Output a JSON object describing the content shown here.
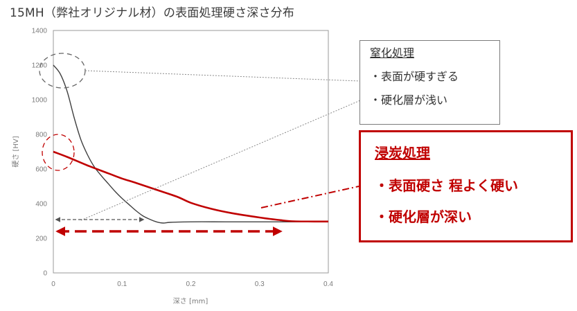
{
  "title": "15MH（弊社オリジナル材）の表面処理硬さ深さ分布",
  "chart_data": {
    "type": "line",
    "xlabel": "深さ [mm]",
    "ylabel": "硬さ [HV]",
    "xlim": [
      0,
      0.4
    ],
    "ylim": [
      0,
      1400
    ],
    "xticks": [
      "0",
      "0.1",
      "0.2",
      "0.3",
      "0.4"
    ],
    "yticks": [
      "0",
      "200",
      "400",
      "600",
      "800",
      "1000",
      "1200",
      "1400"
    ],
    "grid": false,
    "series": [
      {
        "name": "窒化処理",
        "color": "#404040",
        "x": [
          0,
          0.01,
          0.02,
          0.03,
          0.04,
          0.05,
          0.06,
          0.07,
          0.08,
          0.09,
          0.1,
          0.11,
          0.12,
          0.13,
          0.14,
          0.15,
          0.16,
          0.17,
          0.2,
          0.25,
          0.3,
          0.35,
          0.4
        ],
        "y": [
          1200,
          1150,
          1050,
          900,
          770,
          680,
          610,
          560,
          515,
          470,
          430,
          395,
          360,
          330,
          310,
          295,
          288,
          292,
          295,
          295,
          295,
          295,
          295
        ]
      },
      {
        "name": "浸炭処理",
        "color": "#c00000",
        "x": [
          0,
          0.02,
          0.05,
          0.08,
          0.1,
          0.12,
          0.15,
          0.18,
          0.2,
          0.23,
          0.26,
          0.3,
          0.33,
          0.35,
          0.38,
          0.4
        ],
        "y": [
          700,
          670,
          620,
          575,
          545,
          520,
          480,
          440,
          405,
          370,
          345,
          320,
          305,
          298,
          297,
          297
        ]
      }
    ]
  },
  "nitriding_box": {
    "heading": "窒化処理",
    "points": [
      "・表面が硬すぎる",
      "・硬化層が浅い"
    ]
  },
  "carburizing_box": {
    "heading": "浸炭処理",
    "points": [
      "・表面硬さ 程よく硬い",
      "・硬化層が深い"
    ]
  }
}
